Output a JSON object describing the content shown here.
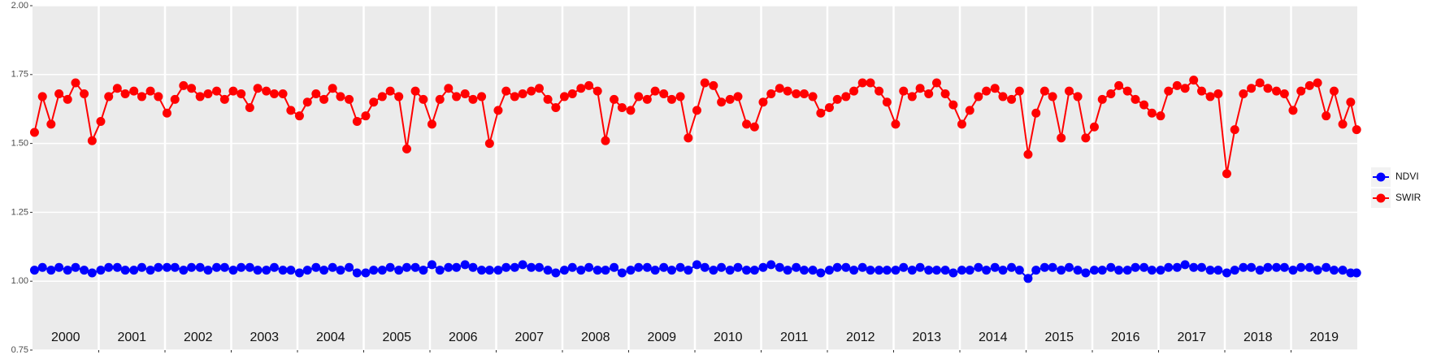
{
  "chart_data": {
    "type": "line",
    "x": [
      2000.03,
      2000.15,
      2000.28,
      2000.4,
      2000.53,
      2000.65,
      2000.78,
      2000.9,
      2001.03,
      2001.15,
      2001.28,
      2001.4,
      2001.53,
      2001.65,
      2001.78,
      2001.9,
      2002.03,
      2002.15,
      2002.28,
      2002.4,
      2002.53,
      2002.65,
      2002.78,
      2002.9,
      2003.03,
      2003.15,
      2003.28,
      2003.4,
      2003.53,
      2003.65,
      2003.78,
      2003.9,
      2004.03,
      2004.15,
      2004.28,
      2004.4,
      2004.53,
      2004.65,
      2004.78,
      2004.9,
      2005.03,
      2005.15,
      2005.28,
      2005.4,
      2005.53,
      2005.65,
      2005.78,
      2005.9,
      2006.03,
      2006.15,
      2006.28,
      2006.4,
      2006.53,
      2006.65,
      2006.78,
      2006.9,
      2007.03,
      2007.15,
      2007.28,
      2007.4,
      2007.53,
      2007.65,
      2007.78,
      2007.9,
      2008.03,
      2008.15,
      2008.28,
      2008.4,
      2008.53,
      2008.65,
      2008.78,
      2008.9,
      2009.03,
      2009.15,
      2009.28,
      2009.4,
      2009.53,
      2009.65,
      2009.78,
      2009.9,
      2010.03,
      2010.15,
      2010.28,
      2010.4,
      2010.53,
      2010.65,
      2010.78,
      2010.9,
      2011.03,
      2011.15,
      2011.28,
      2011.4,
      2011.53,
      2011.65,
      2011.78,
      2011.9,
      2012.03,
      2012.15,
      2012.28,
      2012.4,
      2012.53,
      2012.65,
      2012.78,
      2012.9,
      2013.03,
      2013.15,
      2013.28,
      2013.4,
      2013.53,
      2013.65,
      2013.78,
      2013.9,
      2014.03,
      2014.15,
      2014.28,
      2014.4,
      2014.53,
      2014.65,
      2014.78,
      2014.9,
      2015.03,
      2015.15,
      2015.28,
      2015.4,
      2015.53,
      2015.65,
      2015.78,
      2015.9,
      2016.03,
      2016.15,
      2016.28,
      2016.4,
      2016.53,
      2016.65,
      2016.78,
      2016.9,
      2017.03,
      2017.15,
      2017.28,
      2017.4,
      2017.53,
      2017.65,
      2017.78,
      2017.9,
      2018.03,
      2018.15,
      2018.28,
      2018.4,
      2018.53,
      2018.65,
      2018.78,
      2018.9,
      2019.03,
      2019.15,
      2019.28,
      2019.4,
      2019.53,
      2019.65,
      2019.78,
      2019.9,
      2019.99
    ],
    "series": [
      {
        "name": "NDVI",
        "color": "#0000ff",
        "values": [
          1.04,
          1.05,
          1.04,
          1.05,
          1.04,
          1.05,
          1.04,
          1.03,
          1.04,
          1.05,
          1.05,
          1.04,
          1.04,
          1.05,
          1.04,
          1.05,
          1.05,
          1.05,
          1.04,
          1.05,
          1.05,
          1.04,
          1.05,
          1.05,
          1.04,
          1.05,
          1.05,
          1.04,
          1.04,
          1.05,
          1.04,
          1.04,
          1.03,
          1.04,
          1.05,
          1.04,
          1.05,
          1.04,
          1.05,
          1.03,
          1.03,
          1.04,
          1.04,
          1.05,
          1.04,
          1.05,
          1.05,
          1.04,
          1.06,
          1.04,
          1.05,
          1.05,
          1.06,
          1.05,
          1.04,
          1.04,
          1.04,
          1.05,
          1.05,
          1.06,
          1.05,
          1.05,
          1.04,
          1.03,
          1.04,
          1.05,
          1.04,
          1.05,
          1.04,
          1.04,
          1.05,
          1.03,
          1.04,
          1.05,
          1.05,
          1.04,
          1.05,
          1.04,
          1.05,
          1.04,
          1.06,
          1.05,
          1.04,
          1.05,
          1.04,
          1.05,
          1.04,
          1.04,
          1.05,
          1.06,
          1.05,
          1.04,
          1.05,
          1.04,
          1.04,
          1.03,
          1.04,
          1.05,
          1.05,
          1.04,
          1.05,
          1.04,
          1.04,
          1.04,
          1.04,
          1.05,
          1.04,
          1.05,
          1.04,
          1.04,
          1.04,
          1.03,
          1.04,
          1.04,
          1.05,
          1.04,
          1.05,
          1.04,
          1.05,
          1.04,
          1.01,
          1.04,
          1.05,
          1.05,
          1.04,
          1.05,
          1.04,
          1.03,
          1.04,
          1.04,
          1.05,
          1.04,
          1.04,
          1.05,
          1.05,
          1.04,
          1.04,
          1.05,
          1.05,
          1.06,
          1.05,
          1.05,
          1.04,
          1.04,
          1.03,
          1.04,
          1.05,
          1.05,
          1.04,
          1.05,
          1.05,
          1.05,
          1.04,
          1.05,
          1.05,
          1.04,
          1.05,
          1.04,
          1.04,
          1.03,
          1.03
        ]
      },
      {
        "name": "SWIR",
        "color": "#ff0000",
        "values": [
          1.54,
          1.67,
          1.57,
          1.68,
          1.66,
          1.72,
          1.68,
          1.51,
          1.58,
          1.67,
          1.7,
          1.68,
          1.69,
          1.67,
          1.69,
          1.67,
          1.61,
          1.66,
          1.71,
          1.7,
          1.67,
          1.68,
          1.69,
          1.66,
          1.69,
          1.68,
          1.63,
          1.7,
          1.69,
          1.68,
          1.68,
          1.62,
          1.6,
          1.65,
          1.68,
          1.66,
          1.7,
          1.67,
          1.66,
          1.58,
          1.6,
          1.65,
          1.67,
          1.69,
          1.67,
          1.48,
          1.69,
          1.66,
          1.57,
          1.66,
          1.7,
          1.67,
          1.68,
          1.66,
          1.67,
          1.5,
          1.62,
          1.69,
          1.67,
          1.68,
          1.69,
          1.7,
          1.66,
          1.63,
          1.67,
          1.68,
          1.7,
          1.71,
          1.69,
          1.51,
          1.66,
          1.63,
          1.62,
          1.67,
          1.66,
          1.69,
          1.68,
          1.66,
          1.67,
          1.52,
          1.62,
          1.72,
          1.71,
          1.65,
          1.66,
          1.67,
          1.57,
          1.56,
          1.65,
          1.68,
          1.7,
          1.69,
          1.68,
          1.68,
          1.67,
          1.61,
          1.63,
          1.66,
          1.67,
          1.69,
          1.72,
          1.72,
          1.69,
          1.65,
          1.57,
          1.69,
          1.67,
          1.7,
          1.68,
          1.72,
          1.68,
          1.64,
          1.57,
          1.62,
          1.67,
          1.69,
          1.7,
          1.67,
          1.66,
          1.69,
          1.46,
          1.61,
          1.69,
          1.67,
          1.52,
          1.69,
          1.67,
          1.52,
          1.56,
          1.66,
          1.68,
          1.71,
          1.69,
          1.66,
          1.64,
          1.61,
          1.6,
          1.69,
          1.71,
          1.7,
          1.73,
          1.69,
          1.67,
          1.68,
          1.39,
          1.55,
          1.68,
          1.7,
          1.72,
          1.7,
          1.69,
          1.68,
          1.62,
          1.69,
          1.71,
          1.72,
          1.6,
          1.69,
          1.57,
          1.65,
          1.55
        ]
      }
    ],
    "xlim": [
      2000,
      2020
    ],
    "xticks": [
      {
        "value": 2000.5,
        "label": "2000"
      },
      {
        "value": 2001.5,
        "label": "2001"
      },
      {
        "value": 2002.5,
        "label": "2002"
      },
      {
        "value": 2003.5,
        "label": "2003"
      },
      {
        "value": 2004.5,
        "label": "2004"
      },
      {
        "value": 2005.5,
        "label": "2005"
      },
      {
        "value": 2006.5,
        "label": "2006"
      },
      {
        "value": 2007.5,
        "label": "2007"
      },
      {
        "value": 2008.5,
        "label": "2008"
      },
      {
        "value": 2009.5,
        "label": "2009"
      },
      {
        "value": 2010.5,
        "label": "2010"
      },
      {
        "value": 2011.5,
        "label": "2011"
      },
      {
        "value": 2012.5,
        "label": "2012"
      },
      {
        "value": 2013.5,
        "label": "2013"
      },
      {
        "value": 2014.5,
        "label": "2014"
      },
      {
        "value": 2015.5,
        "label": "2015"
      },
      {
        "value": 2016.5,
        "label": "2016"
      },
      {
        "value": 2017.5,
        "label": "2017"
      },
      {
        "value": 2018.5,
        "label": "2018"
      },
      {
        "value": 2019.5,
        "label": "2019"
      }
    ],
    "xgrid": [
      2001,
      2002,
      2003,
      2004,
      2005,
      2006,
      2007,
      2008,
      2009,
      2010,
      2011,
      2012,
      2013,
      2014,
      2015,
      2016,
      2017,
      2018,
      2019
    ],
    "ylim": [
      0.75,
      2.0
    ],
    "yticks": [
      0.75,
      {
        "value": 1.0,
        "label": "1.00"
      },
      1.25,
      {
        "value": 1.5,
        "label": "1.50"
      },
      1.75,
      {
        "value": 2.0,
        "label": "2.00"
      }
    ],
    "grid": true,
    "legend": "right"
  }
}
